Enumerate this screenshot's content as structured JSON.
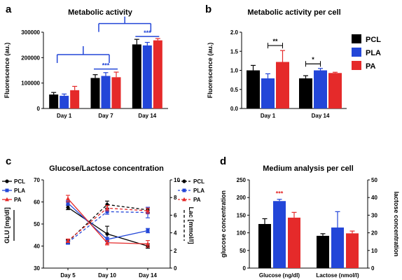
{
  "colors": {
    "PCL": "#000000",
    "PLA": "#2346d8",
    "PA": "#e52a2a",
    "bracket_blue": "#2346d8",
    "bracket_black": "#000000",
    "sig_red": "#e52a2a"
  },
  "chart_data": [
    {
      "panel": "a",
      "type": "bar",
      "title": "Metabolic activity",
      "xlabel": "",
      "ylabel": "Fluorescence (au.)",
      "ylim": [
        0,
        300000
      ],
      "yticks": [
        "0",
        "100000",
        "200000",
        "300000"
      ],
      "categories": [
        "Day 1",
        "Day 7",
        "Day 14"
      ],
      "series": [
        {
          "name": "PCL",
          "values": [
            55000,
            120000,
            252000
          ],
          "errors": [
            8000,
            13000,
            20000
          ]
        },
        {
          "name": "PLA",
          "values": [
            50000,
            128000,
            248000
          ],
          "errors": [
            7000,
            13000,
            12000
          ]
        },
        {
          "name": "PA",
          "values": [
            72000,
            123000,
            268000
          ],
          "errors": [
            15000,
            20000,
            7000
          ]
        }
      ],
      "annotations": [
        {
          "text": "***",
          "between": "Day 7 PCL–PA"
        },
        {
          "text": "***",
          "between": "Day 14 PCL–PA"
        }
      ]
    },
    {
      "panel": "b",
      "type": "bar",
      "title": "Metabolic activity per cell",
      "xlabel": "",
      "ylabel": "Fluorescence (au.)",
      "ylim": [
        0,
        2.0
      ],
      "yticks": [
        "0.0",
        "0.5",
        "1.0",
        "1.5",
        "2.0"
      ],
      "categories": [
        "Day 1",
        "Day 14"
      ],
      "series": [
        {
          "name": "PCL",
          "values": [
            1.0,
            0.79
          ],
          "errors": [
            0.13,
            0.07
          ]
        },
        {
          "name": "PLA",
          "values": [
            0.79,
            1.0
          ],
          "errors": [
            0.12,
            0.05
          ]
        },
        {
          "name": "PA",
          "values": [
            1.22,
            0.93
          ],
          "errors": [
            0.3,
            0.02
          ]
        }
      ],
      "annotations": [
        {
          "text": "**",
          "between": "Day 1 PLA–PA"
        },
        {
          "text": "*",
          "between": "Day 14 PCL–PLA"
        }
      ],
      "legend": {
        "placement": "right",
        "entries": [
          "PCL",
          "PLA",
          "PA"
        ]
      }
    },
    {
      "panel": "c",
      "type": "line",
      "title": "Glucose/Lactose concentration",
      "categories": [
        "Day 5",
        "Day 10",
        "Day 14"
      ],
      "ylabel": "GLU [mg/dl]",
      "ylim": [
        30,
        70
      ],
      "yticks": [
        "30",
        "40",
        "50",
        "60",
        "70"
      ],
      "y2label": "Lac [mmol/l]",
      "y2lim": [
        0,
        10
      ],
      "y2ticks": [
        "0",
        "2",
        "4",
        "6",
        "8",
        "10"
      ],
      "series": [
        {
          "name": "PCL",
          "axis": "left",
          "style": "solid",
          "values": [
            57.5,
            45.5,
            40.0
          ],
          "errors": [
            1.0,
            3.5,
            1.0
          ]
        },
        {
          "name": "PLA",
          "axis": "left",
          "style": "solid",
          "values": [
            59.5,
            43.0,
            47.0
          ],
          "errors": [
            1.0,
            1.0,
            1.0
          ]
        },
        {
          "name": "PA",
          "axis": "left",
          "style": "solid",
          "values": [
            61.5,
            41.5,
            41.0
          ],
          "errors": [
            1.5,
            1.0,
            1.5
          ]
        },
        {
          "name": "PCL",
          "axis": "right",
          "style": "dashed",
          "values": [
            3.0,
            7.2,
            6.6
          ],
          "errors": [
            0.2,
            0.4,
            0.3
          ]
        },
        {
          "name": "PLA",
          "axis": "right",
          "style": "dashed",
          "values": [
            2.9,
            6.4,
            6.3
          ],
          "errors": [
            0.2,
            0.3,
            0.6
          ]
        },
        {
          "name": "PA",
          "axis": "right",
          "style": "dashed",
          "values": [
            3.1,
            6.8,
            6.5
          ],
          "errors": [
            0.2,
            0.3,
            0.3
          ]
        }
      ],
      "legend_left": [
        "PCL",
        "PLA",
        "PA"
      ],
      "legend_right": [
        "PCL",
        "PLA",
        "PA"
      ]
    },
    {
      "panel": "d",
      "type": "bar",
      "title": "Medium analysis per cell",
      "categories": [
        "Glucose (ng/dl)",
        "Lactose (nmol/l)"
      ],
      "ylabel": "glucose concentration",
      "ylim": [
        0,
        250
      ],
      "yticks": [
        "0",
        "50",
        "100",
        "150",
        "200",
        "250"
      ],
      "y2label": "lactose concentration",
      "y2lim": [
        0,
        50
      ],
      "y2ticks": [
        "0",
        "10",
        "20",
        "30",
        "40",
        "50"
      ],
      "series": [
        {
          "name": "PCL",
          "axis_per_category": [
            "left",
            "right"
          ],
          "values": [
            125,
            18.3
          ],
          "errors": [
            15,
            1.2
          ]
        },
        {
          "name": "PLA",
          "axis_per_category": [
            "left",
            "right"
          ],
          "values": [
            190,
            23
          ],
          "errors": [
            5,
            9
          ]
        },
        {
          "name": "PA",
          "axis_per_category": [
            "left",
            "right"
          ],
          "values": [
            143,
            19.7
          ],
          "errors": [
            15,
            1.3
          ]
        }
      ],
      "annotations": [
        {
          "text": "***",
          "above": "Glucose PLA"
        }
      ]
    }
  ],
  "panels": {
    "a": "a",
    "b": "b",
    "c": "c",
    "d": "d"
  }
}
